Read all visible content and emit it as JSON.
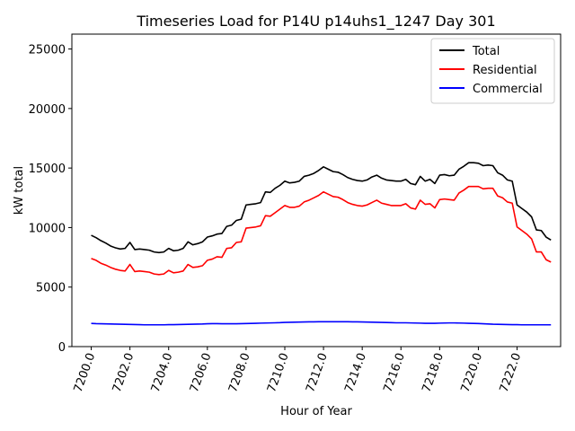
{
  "chart_data": {
    "type": "line",
    "title": "Timeseries Load for P14U p14uhs1_1247  Day 301",
    "xlabel": "Hour of Year",
    "ylabel": "kW total",
    "xlim": [
      7199.0,
      7224.25
    ],
    "ylim": [
      0,
      26250
    ],
    "xticks": [
      7200,
      7202,
      7204,
      7206,
      7208,
      7210,
      7212,
      7214,
      7216,
      7218,
      7220,
      7222
    ],
    "xtick_labels": [
      "7200.0",
      "7202.0",
      "7204.0",
      "7206.0",
      "7208.0",
      "7210.0",
      "7212.0",
      "7214.0",
      "7216.0",
      "7218.0",
      "7220.0",
      "7222.0"
    ],
    "yticks": [
      0,
      5000,
      10000,
      15000,
      20000,
      25000
    ],
    "ytick_labels": [
      "0",
      "5000",
      "10000",
      "15000",
      "20000",
      "25000"
    ],
    "legend_position": "top-right",
    "x": [
      7200.0,
      7200.25,
      7200.5,
      7200.75,
      7201.0,
      7201.25,
      7201.5,
      7201.75,
      7202.0,
      7202.25,
      7202.5,
      7202.75,
      7203.0,
      7203.25,
      7203.5,
      7203.75,
      7204.0,
      7204.25,
      7204.5,
      7204.75,
      7205.0,
      7205.25,
      7205.5,
      7205.75,
      7206.0,
      7206.25,
      7206.5,
      7206.75,
      7207.0,
      7207.25,
      7207.5,
      7207.75,
      7208.0,
      7208.25,
      7208.5,
      7208.75,
      7209.0,
      7209.25,
      7209.5,
      7209.75,
      7210.0,
      7210.25,
      7210.5,
      7210.75,
      7211.0,
      7211.25,
      7211.5,
      7211.75,
      7212.0,
      7212.25,
      7212.5,
      7212.75,
      7213.0,
      7213.25,
      7213.5,
      7213.75,
      7214.0,
      7214.25,
      7214.5,
      7214.75,
      7215.0,
      7215.25,
      7215.5,
      7215.75,
      7216.0,
      7216.25,
      7216.5,
      7216.75,
      7217.0,
      7217.25,
      7217.5,
      7217.75,
      7218.0,
      7218.25,
      7218.5,
      7218.75,
      7219.0,
      7219.25,
      7219.5,
      7219.75,
      7220.0,
      7220.25,
      7220.5,
      7220.75,
      7221.0,
      7221.25,
      7221.5,
      7221.75,
      7222.0,
      7222.25,
      7222.5,
      7222.75,
      7223.0,
      7223.25,
      7223.5,
      7223.75
    ],
    "series": [
      {
        "name": "Total",
        "color": "#000000",
        "values": [
          9350,
          9150,
          8900,
          8700,
          8450,
          8300,
          8200,
          8250,
          8750,
          8150,
          8200,
          8150,
          8100,
          7950,
          7900,
          7950,
          8250,
          8050,
          8100,
          8250,
          8800,
          8550,
          8650,
          8800,
          9200,
          9300,
          9450,
          9500,
          10100,
          10200,
          10600,
          10700,
          11900,
          11950,
          12000,
          12100,
          13000,
          12950,
          13300,
          13550,
          13900,
          13750,
          13800,
          13900,
          14300,
          14400,
          14550,
          14800,
          15100,
          14900,
          14700,
          14650,
          14450,
          14200,
          14050,
          13950,
          13900,
          14000,
          14250,
          14400,
          14150,
          14000,
          13950,
          13900,
          13900,
          14050,
          13700,
          13600,
          14300,
          13900,
          14050,
          13700,
          14400,
          14450,
          14350,
          14400,
          14900,
          15150,
          15450,
          15450,
          15400,
          15200,
          15250,
          15200,
          14600,
          14400,
          14000,
          13900,
          11900,
          11600,
          11300,
          10900,
          9800,
          9750,
          9200,
          8950
        ]
      },
      {
        "name": "Residential",
        "color": "#ff0000",
        "values": [
          7400,
          7250,
          7000,
          6850,
          6650,
          6500,
          6400,
          6350,
          6900,
          6300,
          6350,
          6300,
          6250,
          6100,
          6050,
          6100,
          6400,
          6200,
          6250,
          6350,
          6900,
          6650,
          6700,
          6800,
          7250,
          7350,
          7550,
          7500,
          8250,
          8300,
          8750,
          8800,
          9950,
          10000,
          10050,
          10150,
          11000,
          10950,
          11250,
          11550,
          11850,
          11700,
          11700,
          11800,
          12150,
          12300,
          12500,
          12700,
          13000,
          12800,
          12600,
          12550,
          12350,
          12100,
          11950,
          11850,
          11800,
          11900,
          12100,
          12300,
          12050,
          11950,
          11850,
          11850,
          11850,
          12000,
          11650,
          11550,
          12300,
          11950,
          12000,
          11650,
          12350,
          12400,
          12350,
          12300,
          12900,
          13150,
          13450,
          13450,
          13450,
          13250,
          13300,
          13300,
          12650,
          12500,
          12150,
          12050,
          10050,
          9750,
          9450,
          9050,
          7950,
          7950,
          7300,
          7100
        ]
      },
      {
        "name": "Commercial",
        "color": "#0000ff",
        "values": [
          1950,
          1930,
          1920,
          1910,
          1900,
          1890,
          1880,
          1870,
          1860,
          1850,
          1840,
          1830,
          1830,
          1830,
          1830,
          1830,
          1840,
          1840,
          1850,
          1860,
          1870,
          1880,
          1890,
          1900,
          1920,
          1930,
          1930,
          1920,
          1920,
          1920,
          1920,
          1930,
          1940,
          1950,
          1960,
          1970,
          1980,
          1990,
          2000,
          2010,
          2030,
          2040,
          2050,
          2060,
          2070,
          2080,
          2080,
          2090,
          2090,
          2090,
          2090,
          2090,
          2090,
          2090,
          2080,
          2080,
          2070,
          2060,
          2050,
          2040,
          2030,
          2020,
          2010,
          2000,
          2000,
          2000,
          1990,
          1980,
          1970,
          1960,
          1960,
          1960,
          1970,
          1980,
          1990,
          1990,
          1980,
          1970,
          1960,
          1950,
          1940,
          1920,
          1900,
          1880,
          1870,
          1860,
          1850,
          1840,
          1840,
          1830,
          1830,
          1830,
          1830,
          1830,
          1830,
          1830
        ]
      }
    ]
  }
}
